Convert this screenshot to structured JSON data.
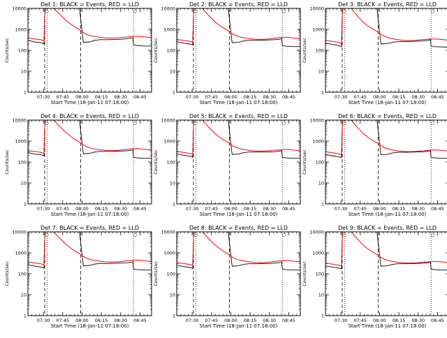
{
  "chart_data": {
    "type": "line",
    "xlabel": "Start Time (18-Jan-11 07:18:00)",
    "ylabel": "Counts/sec",
    "x_ticks": [
      "07:30",
      "07:45",
      "08:00",
      "08:15",
      "08:30",
      "08:45"
    ],
    "x_tick_minutes": [
      12,
      27,
      42,
      57,
      72,
      87
    ],
    "xlim_minutes": [
      0,
      96
    ],
    "y_scale": "log",
    "ylim": [
      1,
      10000
    ],
    "y_ticks": [
      "1",
      "10",
      "100",
      "1000",
      "10000"
    ],
    "y_tick_values": [
      1,
      10,
      100,
      1000,
      10000
    ],
    "legend": "BLACK = Events, RED = LLD",
    "marker_symbol": "○",
    "series_colors": {
      "events": "#000000",
      "lld": "#ff0000"
    },
    "dashed_lines_minutes": [
      13,
      41
    ],
    "dotted_lines_minutes": [
      15,
      82
    ],
    "panels": [
      {
        "title": "Det 1: BLACK = Events, RED = LLD",
        "events": {
          "x": [
            0,
            5,
            10,
            12.5,
            13,
            13.5,
            15,
            24,
            40,
            43,
            48,
            52,
            56,
            62,
            70,
            76,
            80,
            81,
            81.5,
            82,
            84,
            90,
            96
          ],
          "y": [
            300,
            250,
            230,
            200,
            5000,
            10000,
            10000,
            10000,
            10000,
            240,
            250,
            300,
            320,
            320,
            330,
            350,
            380,
            390,
            400,
            180,
            170,
            160,
            160
          ]
        },
        "lld": {
          "x": [
            0,
            5,
            10,
            12.5,
            13,
            13.5,
            15,
            20,
            25,
            30,
            35,
            40,
            43,
            46,
            50,
            55,
            60,
            65,
            70,
            75,
            80,
            85,
            90,
            96
          ],
          "y": [
            380,
            350,
            320,
            280,
            5000,
            10000,
            10000,
            10000,
            5000,
            2500,
            1500,
            950,
            700,
            560,
            470,
            420,
            390,
            380,
            390,
            420,
            450,
            470,
            440,
            400
          ]
        }
      },
      {
        "title": "Det 2: BLACK = Events, RED = LLD",
        "events": {
          "x": [
            0,
            5,
            10,
            12.5,
            13,
            13.5,
            15,
            24,
            40,
            43,
            48,
            52,
            56,
            62,
            70,
            76,
            80,
            81,
            81.5,
            82,
            84,
            90,
            96
          ],
          "y": [
            260,
            220,
            200,
            180,
            5000,
            10000,
            10000,
            10000,
            10000,
            230,
            240,
            280,
            300,
            300,
            310,
            320,
            340,
            350,
            360,
            170,
            160,
            150,
            150
          ]
        },
        "lld": {
          "x": [
            0,
            5,
            10,
            12.5,
            13,
            13.5,
            15,
            20,
            25,
            30,
            35,
            40,
            43,
            46,
            50,
            55,
            60,
            65,
            70,
            75,
            80,
            85,
            90,
            96
          ],
          "y": [
            330,
            300,
            270,
            240,
            5000,
            10000,
            10000,
            10000,
            4500,
            2200,
            1300,
            850,
            620,
            500,
            420,
            370,
            340,
            330,
            340,
            370,
            400,
            420,
            390,
            350
          ]
        }
      },
      {
        "title": "Det 3: BLACK = Events, RED = LLD",
        "events": {
          "x": [
            0,
            5,
            10,
            12.5,
            13,
            13.5,
            15,
            24,
            40,
            43,
            48,
            52,
            56,
            62,
            70,
            76,
            80,
            81,
            81.5,
            82,
            84,
            90,
            96
          ],
          "y": [
            220,
            190,
            170,
            150,
            5000,
            10000,
            10000,
            10000,
            10000,
            200,
            210,
            240,
            260,
            260,
            270,
            280,
            300,
            310,
            320,
            160,
            150,
            145,
            140
          ]
        },
        "lld": {
          "x": [
            0,
            5,
            10,
            12.5,
            13,
            13.5,
            15,
            20,
            25,
            30,
            35,
            40,
            43,
            46,
            50,
            55,
            60,
            65,
            70,
            75,
            80,
            85,
            90,
            96
          ],
          "y": [
            300,
            270,
            240,
            210,
            5000,
            10000,
            10000,
            10000,
            4200,
            2000,
            1200,
            800,
            580,
            460,
            380,
            330,
            300,
            290,
            300,
            320,
            340,
            350,
            330,
            300
          ]
        }
      },
      {
        "title": "Det 4: BLACK = Events, RED = LLD",
        "events": {
          "x": [
            0,
            5,
            10,
            12.5,
            13,
            13.5,
            15,
            24,
            40,
            43,
            48,
            52,
            56,
            62,
            70,
            76,
            80,
            81,
            81.5,
            82,
            84,
            90,
            96
          ],
          "y": [
            280,
            240,
            220,
            200,
            5000,
            10000,
            10000,
            10000,
            10000,
            250,
            260,
            300,
            320,
            320,
            330,
            340,
            360,
            370,
            380,
            170,
            160,
            150,
            150
          ]
        },
        "lld": {
          "x": [
            0,
            5,
            10,
            12.5,
            13,
            13.5,
            15,
            20,
            25,
            30,
            35,
            40,
            43,
            46,
            50,
            55,
            60,
            65,
            70,
            75,
            80,
            85,
            90,
            96
          ],
          "y": [
            350,
            320,
            290,
            260,
            5000,
            10000,
            10000,
            10000,
            4800,
            2400,
            1400,
            900,
            660,
            530,
            440,
            390,
            360,
            350,
            360,
            390,
            420,
            440,
            410,
            370
          ]
        }
      },
      {
        "title": "Det 5: BLACK = Events, RED = LLD",
        "events": {
          "x": [
            0,
            5,
            10,
            12.5,
            13,
            13.5,
            15,
            24,
            40,
            43,
            48,
            52,
            56,
            62,
            70,
            76,
            80,
            81,
            81.5,
            82,
            84,
            90,
            96
          ],
          "y": [
            250,
            210,
            190,
            170,
            5000,
            10000,
            10000,
            10000,
            10000,
            230,
            240,
            280,
            300,
            300,
            300,
            310,
            330,
            340,
            350,
            170,
            160,
            150,
            150
          ]
        },
        "lld": {
          "x": [
            0,
            5,
            10,
            12.5,
            13,
            13.5,
            15,
            20,
            25,
            30,
            35,
            40,
            43,
            46,
            50,
            55,
            60,
            65,
            70,
            75,
            80,
            85,
            90,
            96
          ],
          "y": [
            320,
            290,
            260,
            230,
            5000,
            10000,
            10000,
            10000,
            4500,
            2200,
            1300,
            850,
            620,
            500,
            420,
            370,
            340,
            330,
            340,
            360,
            380,
            400,
            380,
            340
          ]
        }
      },
      {
        "title": "Det 6: BLACK = Events, RED = LLD",
        "events": {
          "x": [
            0,
            5,
            10,
            12.5,
            13,
            13.5,
            15,
            24,
            40,
            43,
            48,
            52,
            56,
            62,
            70,
            76,
            80,
            81,
            81.5,
            82,
            84,
            90,
            96
          ],
          "y": [
            230,
            200,
            180,
            160,
            5000,
            10000,
            10000,
            10000,
            10000,
            220,
            230,
            270,
            290,
            290,
            300,
            310,
            330,
            340,
            350,
            170,
            160,
            150,
            150
          ]
        },
        "lld": {
          "x": [
            0,
            5,
            10,
            12.5,
            13,
            13.5,
            15,
            20,
            25,
            30,
            35,
            40,
            43,
            46,
            50,
            55,
            60,
            65,
            70,
            75,
            80,
            85,
            90,
            96
          ],
          "y": [
            310,
            280,
            250,
            220,
            5000,
            10000,
            10000,
            10000,
            4400,
            2100,
            1250,
            820,
            600,
            480,
            400,
            350,
            320,
            310,
            320,
            340,
            360,
            380,
            360,
            330
          ]
        }
      },
      {
        "title": "Det 7: BLACK = Events, RED = LLD",
        "events": {
          "x": [
            0,
            5,
            10,
            12.5,
            13,
            13.5,
            15,
            24,
            40,
            43,
            48,
            52,
            56,
            62,
            70,
            76,
            80,
            81,
            81.5,
            82,
            84,
            90,
            96
          ],
          "y": [
            270,
            230,
            210,
            190,
            5000,
            10000,
            10000,
            10000,
            10000,
            240,
            250,
            290,
            310,
            310,
            320,
            330,
            350,
            360,
            370,
            170,
            160,
            150,
            150
          ]
        },
        "lld": {
          "x": [
            0,
            5,
            10,
            12.5,
            13,
            13.5,
            15,
            20,
            25,
            30,
            35,
            40,
            43,
            46,
            50,
            55,
            60,
            65,
            70,
            75,
            80,
            85,
            90,
            96
          ],
          "y": [
            360,
            330,
            300,
            270,
            5000,
            10000,
            10000,
            10000,
            4800,
            2400,
            1400,
            900,
            670,
            540,
            450,
            400,
            370,
            360,
            370,
            400,
            430,
            450,
            420,
            380
          ]
        }
      },
      {
        "title": "Det 8: BLACK = Events, RED = LLD",
        "events": {
          "x": [
            0,
            5,
            10,
            12.5,
            13,
            13.5,
            15,
            24,
            40,
            43,
            48,
            52,
            56,
            62,
            70,
            76,
            80,
            81,
            81.5,
            82,
            84,
            90,
            96
          ],
          "y": [
            260,
            220,
            200,
            180,
            5000,
            10000,
            10000,
            10000,
            10000,
            230,
            240,
            280,
            300,
            300,
            310,
            320,
            340,
            350,
            360,
            170,
            160,
            150,
            150
          ]
        },
        "lld": {
          "x": [
            0,
            5,
            10,
            12.5,
            13,
            13.5,
            15,
            20,
            25,
            30,
            35,
            40,
            43,
            46,
            50,
            55,
            60,
            65,
            70,
            75,
            80,
            85,
            90,
            96
          ],
          "y": [
            340,
            310,
            280,
            250,
            5000,
            10000,
            10000,
            10000,
            4600,
            2300,
            1350,
            880,
            640,
            510,
            430,
            380,
            350,
            340,
            350,
            380,
            410,
            430,
            400,
            360
          ]
        }
      },
      {
        "title": "Det 9: BLACK = Events, RED = LLD",
        "events": {
          "x": [
            0,
            5,
            10,
            12.5,
            13,
            13.5,
            15,
            24,
            40,
            43,
            48,
            52,
            56,
            62,
            70,
            76,
            80,
            81,
            81.5,
            82,
            84,
            90,
            96
          ],
          "y": [
            240,
            210,
            190,
            170,
            5000,
            10000,
            10000,
            10000,
            10000,
            230,
            240,
            280,
            300,
            300,
            310,
            320,
            340,
            350,
            360,
            170,
            160,
            150,
            150
          ]
        },
        "lld": {
          "x": [
            0,
            5,
            10,
            12.5,
            13,
            13.5,
            15,
            20,
            25,
            30,
            35,
            40,
            43,
            46,
            50,
            55,
            60,
            65,
            70,
            75,
            80,
            85,
            90,
            96
          ],
          "y": [
            320,
            290,
            260,
            230,
            5000,
            10000,
            10000,
            10000,
            4400,
            2100,
            1250,
            830,
            610,
            490,
            410,
            360,
            330,
            320,
            330,
            350,
            370,
            390,
            370,
            340
          ]
        }
      }
    ]
  }
}
